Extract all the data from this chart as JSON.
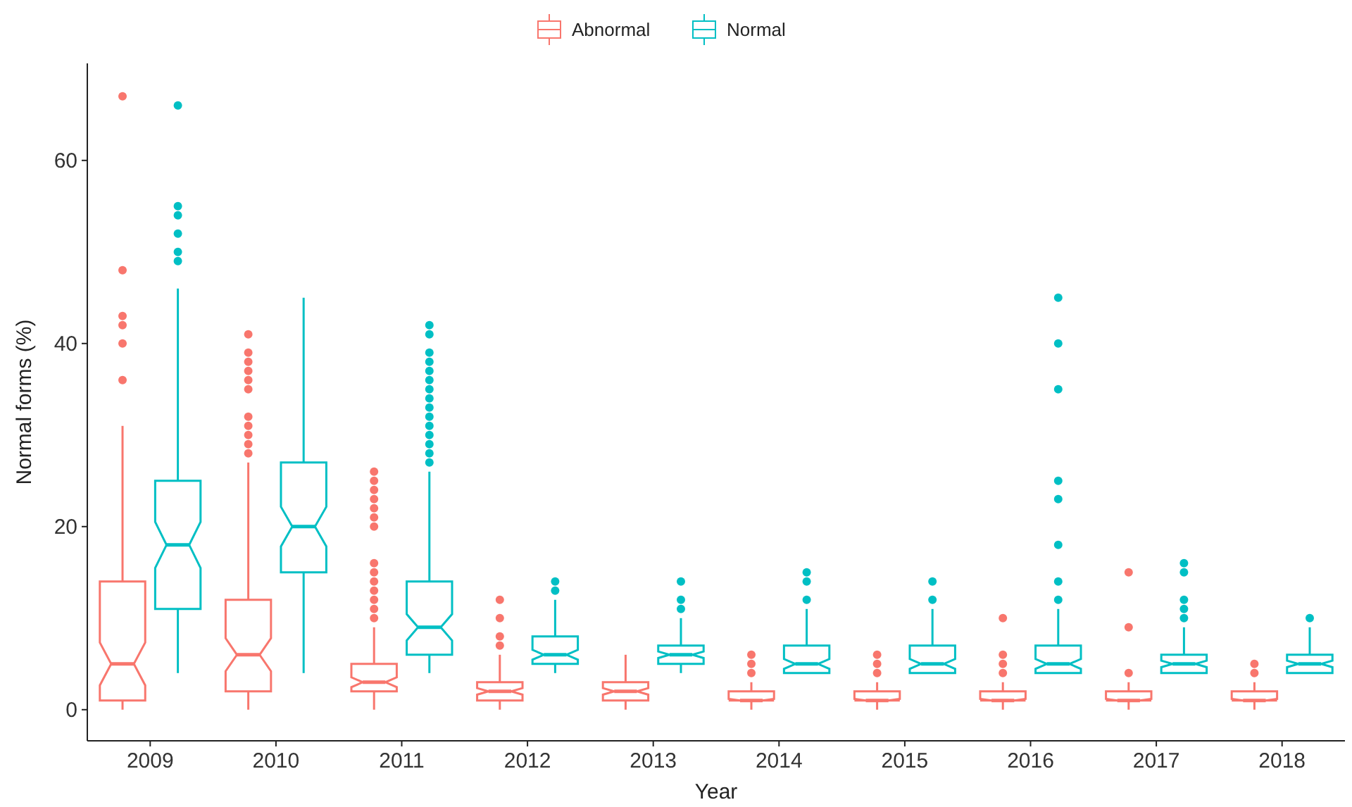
{
  "chart_data": {
    "type": "box",
    "xlabel": "Year",
    "ylabel": "Normal forms (%)",
    "categories": [
      "2009",
      "2010",
      "2011",
      "2012",
      "2013",
      "2014",
      "2015",
      "2016",
      "2017",
      "2018"
    ],
    "ylim": [
      -3.4,
      70.6
    ],
    "yticks": [
      0,
      20,
      40,
      60
    ],
    "grid": false,
    "legend": "top",
    "series": [
      {
        "name": "Abnormal",
        "color": "#f8766d",
        "boxes": [
          {
            "low": 0,
            "q1": 1,
            "median": 5,
            "q3": 14,
            "high": 31,
            "outliers": [
              36,
              40,
              42,
              43,
              48,
              67
            ]
          },
          {
            "low": 0,
            "q1": 2,
            "median": 6,
            "q3": 12,
            "high": 27,
            "outliers": [
              28,
              29,
              30,
              31,
              32,
              35,
              36,
              37,
              38,
              39,
              41
            ]
          },
          {
            "low": 0,
            "q1": 2,
            "median": 3,
            "q3": 5,
            "high": 9,
            "outliers": [
              10,
              11,
              12,
              13,
              14,
              15,
              16,
              20,
              21,
              22,
              23,
              24,
              25,
              26
            ]
          },
          {
            "low": 0,
            "q1": 1,
            "median": 2,
            "q3": 3,
            "high": 6,
            "outliers": [
              7,
              8,
              10,
              12
            ]
          },
          {
            "low": 0,
            "q1": 1,
            "median": 2,
            "q3": 3,
            "high": 6
          },
          {
            "low": 0,
            "q1": 1,
            "median": 1,
            "q3": 2,
            "high": 3,
            "outliers": [
              4,
              5,
              6
            ]
          },
          {
            "low": 0,
            "q1": 1,
            "median": 1,
            "q3": 2,
            "high": 3,
            "outliers": [
              4,
              5,
              6
            ]
          },
          {
            "low": 0,
            "q1": 1,
            "median": 1,
            "q3": 2,
            "high": 3,
            "outliers": [
              4,
              5,
              6,
              10
            ]
          },
          {
            "low": 0,
            "q1": 1,
            "median": 1,
            "q3": 2,
            "high": 3,
            "outliers": [
              4,
              9,
              15
            ]
          },
          {
            "low": 0,
            "q1": 1,
            "median": 1,
            "q3": 2,
            "high": 3,
            "outliers": [
              4,
              5
            ]
          }
        ]
      },
      {
        "name": "Normal",
        "color": "#00bfc4",
        "boxes": [
          {
            "low": 4,
            "q1": 11,
            "median": 18,
            "q3": 25,
            "high": 46,
            "outliers": [
              49,
              50,
              52,
              54,
              55,
              66
            ]
          },
          {
            "low": 4,
            "q1": 15,
            "median": 20,
            "q3": 27,
            "high": 45
          },
          {
            "low": 4,
            "q1": 6,
            "median": 9,
            "q3": 14,
            "high": 26,
            "outliers": [
              27,
              28,
              29,
              30,
              31,
              32,
              33,
              34,
              35,
              36,
              37,
              38,
              39,
              41,
              42
            ]
          },
          {
            "low": 4,
            "q1": 5,
            "median": 6,
            "q3": 8,
            "high": 12,
            "outliers": [
              13,
              14
            ]
          },
          {
            "low": 4,
            "q1": 5,
            "median": 6,
            "q3": 7,
            "high": 10,
            "outliers": [
              11,
              12,
              14
            ]
          },
          {
            "low": 4,
            "q1": 4,
            "median": 5,
            "q3": 7,
            "high": 11,
            "outliers": [
              12,
              14,
              15
            ]
          },
          {
            "low": 4,
            "q1": 4,
            "median": 5,
            "q3": 7,
            "high": 11,
            "outliers": [
              12,
              14
            ]
          },
          {
            "low": 4,
            "q1": 4,
            "median": 5,
            "q3": 7,
            "high": 11,
            "outliers": [
              12,
              14,
              18,
              23,
              25,
              35,
              40,
              45
            ]
          },
          {
            "low": 4,
            "q1": 4,
            "median": 5,
            "q3": 6,
            "high": 9,
            "outliers": [
              10,
              11,
              12,
              15,
              16
            ]
          },
          {
            "low": 4,
            "q1": 4,
            "median": 5,
            "q3": 6,
            "high": 9,
            "outliers": [
              10
            ]
          }
        ]
      }
    ]
  }
}
